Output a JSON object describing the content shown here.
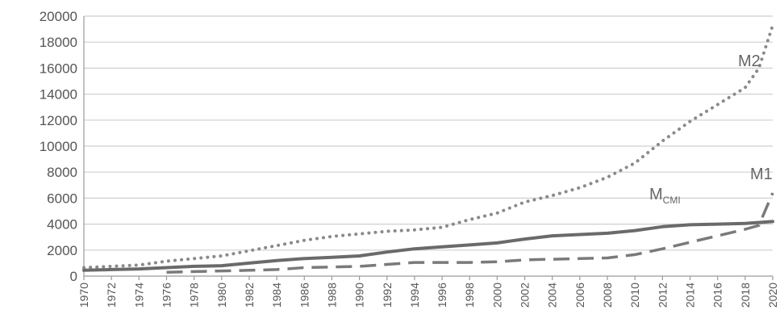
{
  "chart_data": {
    "type": "line",
    "title": "",
    "xlabel": "",
    "ylabel": "",
    "xlim": [
      1970,
      2020
    ],
    "ylim": [
      0,
      20000
    ],
    "y_ticks": [
      "0",
      "2000",
      "4000",
      "6000",
      "8000",
      "10000",
      "12000",
      "14000",
      "16000",
      "18000",
      "20000"
    ],
    "x_ticks": [
      "1970",
      "1972",
      "1974",
      "1976",
      "1978",
      "1980",
      "1982",
      "1984",
      "1986",
      "1988",
      "1990",
      "1992",
      "1994",
      "1996",
      "1998",
      "2000",
      "2002",
      "2004",
      "2006",
      "2008",
      "2010",
      "2012",
      "2014",
      "2016",
      "2018",
      "2020"
    ],
    "grid": true,
    "legend": "none",
    "series": [
      {
        "name": "M2",
        "label_main": "M2",
        "label_sub": "",
        "style": "dotted",
        "color": "#8a8a8a",
        "x": [
          1970,
          1972,
          1974,
          1976,
          1978,
          1980,
          1982,
          1984,
          1986,
          1988,
          1990,
          1992,
          1994,
          1996,
          1998,
          2000,
          2002,
          2004,
          2006,
          2008,
          2010,
          2012,
          2014,
          2016,
          2018,
          2019,
          2020
        ],
        "y": [
          650,
          750,
          850,
          1150,
          1350,
          1550,
          1950,
          2350,
          2750,
          3050,
          3250,
          3450,
          3550,
          3750,
          4350,
          4850,
          5700,
          6200,
          6800,
          7600,
          8700,
          10400,
          11900,
          13200,
          14500,
          16000,
          19300
        ]
      },
      {
        "name": "M_CMI",
        "label_main": "M",
        "label_sub": "CMI",
        "style": "solid",
        "color": "#6a6a6a",
        "x": [
          1970,
          1972,
          1974,
          1976,
          1978,
          1980,
          1982,
          1984,
          1986,
          1988,
          1990,
          1992,
          1994,
          1996,
          1998,
          2000,
          2002,
          2004,
          2006,
          2008,
          2010,
          2012,
          2014,
          2016,
          2018,
          2020
        ],
        "y": [
          450,
          500,
          550,
          650,
          750,
          800,
          1000,
          1200,
          1350,
          1450,
          1550,
          1850,
          2100,
          2250,
          2400,
          2550,
          2850,
          3100,
          3200,
          3300,
          3500,
          3800,
          3950,
          4000,
          4050,
          4200
        ]
      },
      {
        "name": "M1",
        "label_main": "M1",
        "label_sub": "",
        "style": "dashed",
        "color": "#7a7a7a",
        "x": [
          1976,
          1978,
          1980,
          1982,
          1984,
          1986,
          1988,
          1990,
          1992,
          1994,
          1996,
          1998,
          2000,
          2002,
          2004,
          2006,
          2008,
          2010,
          2012,
          2014,
          2016,
          2018,
          2019,
          2020
        ],
        "y": [
          300,
          350,
          400,
          450,
          500,
          650,
          700,
          750,
          900,
          1050,
          1050,
          1050,
          1100,
          1250,
          1300,
          1350,
          1400,
          1650,
          2100,
          2600,
          3100,
          3600,
          3900,
          6400
        ]
      }
    ]
  }
}
